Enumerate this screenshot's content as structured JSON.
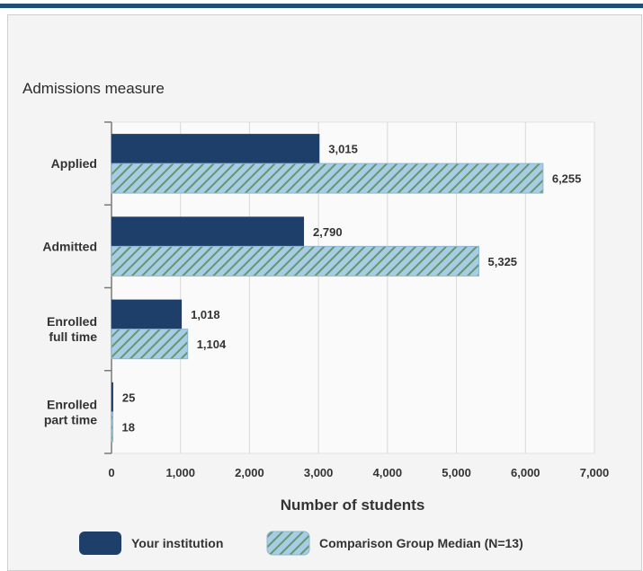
{
  "colors": {
    "institution": "#1f3f6b",
    "comparison_fill": "#a9cbe3",
    "comparison_stripe": "#5f9a6f",
    "grid": "#d9d9d9",
    "axis": "#7a7a7a"
  },
  "chart_data": {
    "type": "bar",
    "orientation": "horizontal",
    "title": "Admissions measure",
    "xlabel": "Number of students",
    "ylabel": "",
    "xlim": [
      0,
      7000
    ],
    "xticks": [
      0,
      1000,
      2000,
      3000,
      4000,
      5000,
      6000,
      7000
    ],
    "xtick_labels": [
      "0",
      "1,000",
      "2,000",
      "3,000",
      "4,000",
      "5,000",
      "6,000",
      "7,000"
    ],
    "grid": true,
    "legend_position": "bottom",
    "categories": [
      [
        "Applied"
      ],
      [
        "Admitted"
      ],
      [
        "Enrolled",
        "full time"
      ],
      [
        "Enrolled",
        "part time"
      ]
    ],
    "series": [
      {
        "name": "Your institution",
        "style": "solid",
        "values": [
          3015,
          2790,
          1018,
          25
        ],
        "labels": [
          "3,015",
          "2,790",
          "1,018",
          "25"
        ]
      },
      {
        "name": "Comparison Group Median (N=13)",
        "style": "hatched",
        "values": [
          6255,
          5325,
          1104,
          18
        ],
        "labels": [
          "6,255",
          "5,325",
          "1,104",
          "18"
        ]
      }
    ]
  }
}
